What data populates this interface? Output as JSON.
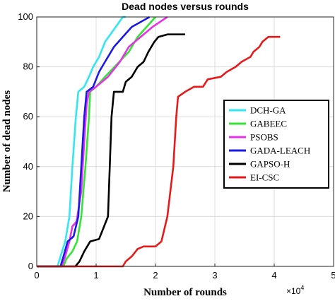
{
  "chart_data": {
    "type": "line",
    "title": "Dead nodes versus rounds",
    "xlabel": "Number of rounds",
    "ylabel": "Number of dead nodes",
    "x_exponent_label": "×10",
    "x_exponent_power": "4",
    "xlim": [
      0,
      5
    ],
    "ylim": [
      0,
      100
    ],
    "x_ticks": [
      "0",
      "1",
      "2",
      "3",
      "4",
      "5"
    ],
    "y_ticks": [
      "0",
      "20",
      "40",
      "60",
      "80",
      "100"
    ],
    "x_tick_values": [
      0,
      1,
      2,
      3,
      4,
      5
    ],
    "y_tick_values": [
      0,
      20,
      40,
      60,
      80,
      100
    ],
    "grid": true,
    "legend_position": "right",
    "series": [
      {
        "name": "DCH-GA",
        "color": "#33e6f2",
        "points": [
          [
            0,
            0
          ],
          [
            0.35,
            0
          ],
          [
            0.4,
            4
          ],
          [
            0.48,
            10
          ],
          [
            0.55,
            20
          ],
          [
            0.6,
            40
          ],
          [
            0.66,
            60
          ],
          [
            0.7,
            70
          ],
          [
            0.8,
            72
          ],
          [
            0.88,
            76
          ],
          [
            0.95,
            80
          ],
          [
            1.05,
            84
          ],
          [
            1.15,
            90
          ],
          [
            1.3,
            95
          ],
          [
            1.45,
            100
          ],
          [
            1.5,
            100
          ]
        ]
      },
      {
        "name": "GABEEC",
        "color": "#33e633",
        "points": [
          [
            0,
            0
          ],
          [
            0.45,
            0
          ],
          [
            0.5,
            3
          ],
          [
            0.6,
            6
          ],
          [
            0.68,
            10
          ],
          [
            0.75,
            20
          ],
          [
            0.82,
            40
          ],
          [
            0.88,
            60
          ],
          [
            0.9,
            70
          ],
          [
            1.0,
            72
          ],
          [
            1.15,
            76
          ],
          [
            1.35,
            81
          ],
          [
            1.55,
            86
          ],
          [
            1.7,
            92
          ],
          [
            1.85,
            96
          ],
          [
            2.0,
            100
          ]
        ]
      },
      {
        "name": "PSOBS",
        "color": "#e633e6",
        "points": [
          [
            0,
            0
          ],
          [
            0.42,
            0
          ],
          [
            0.48,
            4
          ],
          [
            0.55,
            10
          ],
          [
            0.6,
            16
          ],
          [
            0.67,
            18
          ],
          [
            0.75,
            30
          ],
          [
            0.8,
            50
          ],
          [
            0.84,
            65
          ],
          [
            0.88,
            70
          ],
          [
            1.0,
            72
          ],
          [
            1.2,
            76
          ],
          [
            1.4,
            82
          ],
          [
            1.55,
            88
          ],
          [
            1.75,
            92
          ],
          [
            1.95,
            96
          ],
          [
            2.2,
            100
          ]
        ]
      },
      {
        "name": "GADA-LEACH",
        "color": "#1a1ae6",
        "points": [
          [
            0,
            0
          ],
          [
            0.4,
            0
          ],
          [
            0.45,
            4
          ],
          [
            0.52,
            10
          ],
          [
            0.62,
            12
          ],
          [
            0.7,
            20
          ],
          [
            0.75,
            40
          ],
          [
            0.8,
            60
          ],
          [
            0.84,
            70
          ],
          [
            0.95,
            72
          ],
          [
            1.05,
            78
          ],
          [
            1.15,
            82
          ],
          [
            1.3,
            88
          ],
          [
            1.45,
            92
          ],
          [
            1.6,
            96
          ],
          [
            1.75,
            98
          ],
          [
            1.9,
            100
          ]
        ]
      },
      {
        "name": "GAPSO-H",
        "color": "#000000",
        "points": [
          [
            0,
            0
          ],
          [
            0.65,
            0
          ],
          [
            0.72,
            2
          ],
          [
            0.8,
            6
          ],
          [
            0.9,
            10
          ],
          [
            1.05,
            11
          ],
          [
            1.1,
            14
          ],
          [
            1.2,
            20
          ],
          [
            1.23,
            40
          ],
          [
            1.26,
            60
          ],
          [
            1.3,
            70
          ],
          [
            1.45,
            70
          ],
          [
            1.5,
            74
          ],
          [
            1.6,
            76
          ],
          [
            1.7,
            80
          ],
          [
            1.8,
            82
          ],
          [
            1.88,
            86
          ],
          [
            1.98,
            90
          ],
          [
            2.05,
            92
          ],
          [
            2.2,
            93
          ],
          [
            2.5,
            93
          ]
        ]
      },
      {
        "name": "EI-CSC",
        "color": "#e61a1a",
        "points": [
          [
            0,
            0
          ],
          [
            1.45,
            0
          ],
          [
            1.5,
            2
          ],
          [
            1.6,
            4
          ],
          [
            1.7,
            7
          ],
          [
            1.8,
            8
          ],
          [
            2.0,
            8
          ],
          [
            2.1,
            10
          ],
          [
            2.2,
            20
          ],
          [
            2.3,
            40
          ],
          [
            2.35,
            60
          ],
          [
            2.38,
            68
          ],
          [
            2.5,
            70
          ],
          [
            2.65,
            72
          ],
          [
            2.8,
            72
          ],
          [
            2.88,
            75
          ],
          [
            3.1,
            76
          ],
          [
            3.2,
            78
          ],
          [
            3.35,
            80
          ],
          [
            3.45,
            82
          ],
          [
            3.6,
            84
          ],
          [
            3.65,
            86
          ],
          [
            3.75,
            88
          ],
          [
            3.8,
            90
          ],
          [
            3.9,
            92
          ],
          [
            3.95,
            92
          ],
          [
            4.1,
            92
          ]
        ]
      }
    ]
  }
}
